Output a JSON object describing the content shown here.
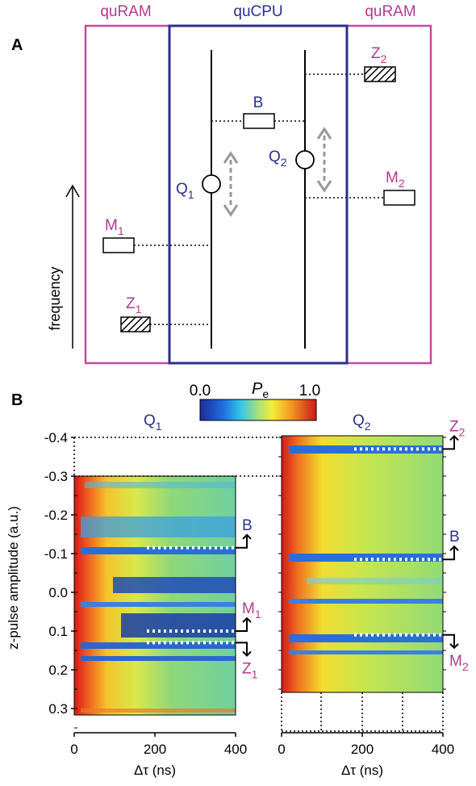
{
  "panelA": {
    "label": "A",
    "left_region": "quRAM",
    "center_region": "quCPU",
    "right_region": "quRAM",
    "axis_label": "frequency",
    "bus": "B",
    "qubits": [
      {
        "name": "Q",
        "sub": "1"
      },
      {
        "name": "Q",
        "sub": "2"
      }
    ],
    "memories": [
      {
        "name": "M",
        "sub": "1"
      },
      {
        "name": "Z",
        "sub": "1"
      },
      {
        "name": "M",
        "sub": "2"
      },
      {
        "name": "Z",
        "sub": "2"
      }
    ]
  },
  "panelB": {
    "label": "B",
    "colorbar": {
      "title": "P",
      "title_sub": "e",
      "min": "0.0",
      "max": "1.0"
    },
    "ylabel": "z-pulse amplitude (a.u.)",
    "yticks": [
      "-0.4",
      "-0.3",
      "-0.2",
      "-0.1",
      "0.0",
      "0.1",
      "0.2",
      "0.3"
    ],
    "left_title": {
      "name": "Q",
      "sub": "1"
    },
    "right_title": {
      "name": "Q",
      "sub": "2"
    },
    "xticks": [
      "0",
      "200",
      "400"
    ],
    "xlabel": "Δτ (ns)",
    "left_markers": [
      {
        "name": "B",
        "sub": ""
      },
      {
        "name": "M",
        "sub": "1"
      },
      {
        "name": "Z",
        "sub": "1"
      }
    ],
    "right_markers": [
      {
        "name": "Z",
        "sub": "2"
      },
      {
        "name": "B",
        "sub": ""
      },
      {
        "name": "M",
        "sub": "2"
      }
    ]
  },
  "chart_data": [
    {
      "type": "heatmap",
      "title": "Q1",
      "xlabel": "Δτ (ns)",
      "ylabel": "z-pulse amplitude (a.u.)",
      "xlim": [
        0,
        400
      ],
      "ylim": [
        -0.3,
        0.35
      ],
      "resonances": [
        {
          "label": "B",
          "z": -0.115
        },
        {
          "label": "M1",
          "z": 0.1
        },
        {
          "label": "Z1",
          "z": 0.13
        }
      ],
      "colorscale": {
        "label": "Pe",
        "min": 0.0,
        "max": 1.0
      }
    },
    {
      "type": "heatmap",
      "title": "Q2",
      "xlabel": "Δτ (ns)",
      "ylabel": "z-pulse amplitude (a.u.)",
      "xlim": [
        0,
        400
      ],
      "ylim": [
        -0.4,
        0.25
      ],
      "resonances": [
        {
          "label": "Z2",
          "z": -0.37
        },
        {
          "label": "B",
          "z": -0.085
        },
        {
          "label": "M2",
          "z": 0.11
        }
      ],
      "colorscale": {
        "label": "Pe",
        "min": 0.0,
        "max": 1.0
      }
    }
  ]
}
